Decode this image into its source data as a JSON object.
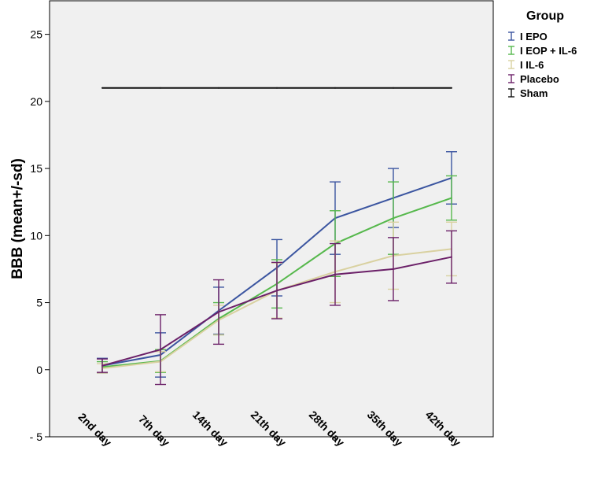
{
  "chart_data": {
    "type": "line",
    "ylabel": "BBB (mean+/-sd)",
    "xlabel": "",
    "categories": [
      "2nd day",
      "7th day",
      "14th day",
      "21th day",
      "28th day",
      "35th day",
      "42th day"
    ],
    "y_ticks": [
      {
        "value": -5,
        "label": "- 5"
      },
      {
        "value": 0,
        "label": "0"
      },
      {
        "value": 5,
        "label": "5"
      },
      {
        "value": 10,
        "label": "10"
      },
      {
        "value": 15,
        "label": "15"
      },
      {
        "value": 20,
        "label": "20"
      },
      {
        "value": 25,
        "label": "25"
      }
    ],
    "ylim": [
      -5,
      27.5
    ],
    "grid": false,
    "legend": {
      "title": "Group",
      "placement": "right"
    },
    "series": [
      {
        "name": "I EPO",
        "color": "#3b55a0",
        "values": [
          0.3,
          1.1,
          4.4,
          7.6,
          11.3,
          12.8,
          14.3
        ],
        "sd": [
          0.55,
          1.65,
          1.75,
          2.1,
          2.7,
          2.2,
          1.95
        ]
      },
      {
        "name": "I EOP + IL-6",
        "color": "#56b84c",
        "values": [
          0.2,
          0.65,
          3.8,
          6.4,
          9.4,
          11.3,
          12.8
        ],
        "sd": [
          0.4,
          0.85,
          1.2,
          1.8,
          2.45,
          2.7,
          1.65
        ]
      },
      {
        "name": "I IL-6",
        "color": "#d9d1a0",
        "values": [
          0.1,
          0.6,
          3.7,
          5.9,
          7.3,
          8.5,
          9.0
        ],
        "sd": [
          0.35,
          0.75,
          1.1,
          2.05,
          2.3,
          2.5,
          2.0
        ]
      },
      {
        "name": "Placebo",
        "color": "#6b2068",
        "values": [
          0.3,
          1.5,
          4.3,
          5.9,
          7.1,
          7.5,
          8.4
        ],
        "sd": [
          0.5,
          2.6,
          2.4,
          2.1,
          2.3,
          2.35,
          1.95
        ]
      },
      {
        "name": "Sham",
        "color": "#111111",
        "values": [
          21,
          21,
          21,
          21,
          21,
          21,
          21
        ],
        "sd": [
          0,
          0,
          0,
          0,
          0,
          0,
          0
        ]
      }
    ]
  }
}
